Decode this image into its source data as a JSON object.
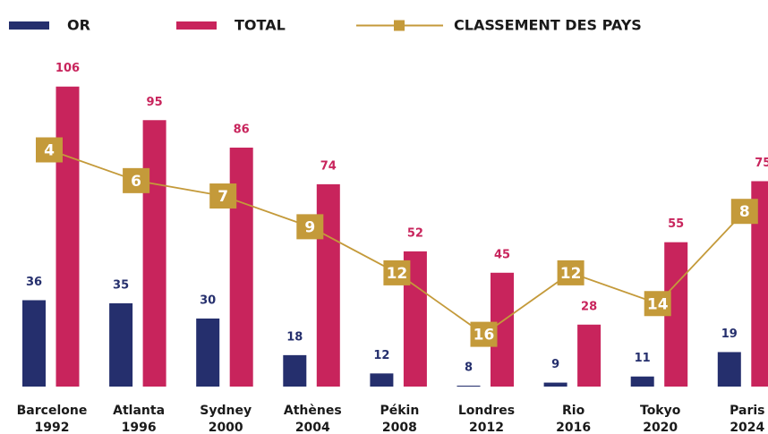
{
  "chart_data": {
    "type": "bar-line",
    "categories": [
      "Barcelone",
      "Atlanta",
      "Sydney",
      "Athènes",
      "Pékin",
      "Londres",
      "Rio",
      "Tokyo",
      "Paris"
    ],
    "years": [
      1992,
      1996,
      2000,
      2004,
      2008,
      2012,
      2016,
      2020,
      2024
    ],
    "series": [
      {
        "name": "OR",
        "type": "bar",
        "color": "#252f6d",
        "values": [
          36,
          35,
          30,
          18,
          12,
          8,
          9,
          11,
          19
        ]
      },
      {
        "name": "TOTAL",
        "type": "bar",
        "color": "#c8245c",
        "values": [
          106,
          95,
          86,
          74,
          52,
          45,
          28,
          55,
          75
        ]
      },
      {
        "name": "CLASSEMENT DES PAYS",
        "type": "line",
        "axis": "y2",
        "color": "#c49a3a",
        "values": [
          4,
          6,
          7,
          9,
          12,
          16,
          12,
          14,
          8
        ]
      }
    ],
    "ylim": [
      7.7,
      120
    ],
    "y2lim": [
      19.4,
      -2.9
    ],
    "legend": "top"
  }
}
